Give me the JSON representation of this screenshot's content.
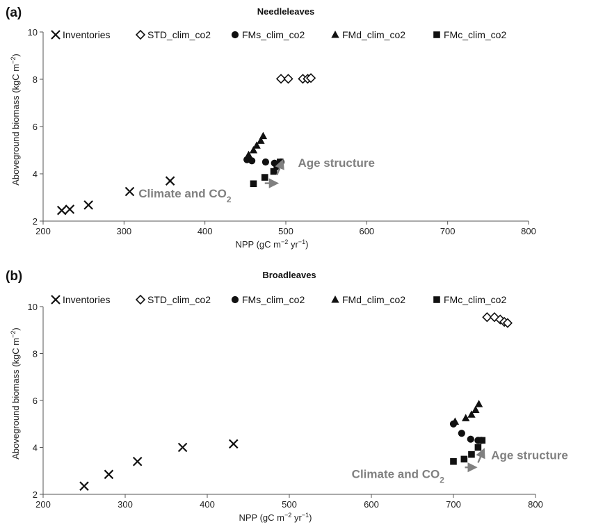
{
  "chart_data": [
    {
      "type": "scatter",
      "panel_label": "(a)",
      "title": "Needleleaves",
      "xlabel": "NPP (gC m−2 yr−1)",
      "ylabel": "Aboveground biomass (kgC m−2)",
      "xlim": [
        200,
        800
      ],
      "ylim": [
        2,
        10
      ],
      "xticks": [
        200,
        300,
        400,
        500,
        600,
        700,
        800
      ],
      "yticks": [
        2,
        4,
        6,
        8,
        10
      ],
      "legend": "top",
      "series": [
        {
          "name": "Inventories",
          "marker": "x",
          "x": [
            223,
            233,
            256,
            307,
            357
          ],
          "y": [
            2.45,
            2.5,
            2.68,
            3.25,
            3.7
          ]
        },
        {
          "name": "STD_clim_co2",
          "marker": "diamond-open",
          "x": [
            494,
            503,
            521,
            527,
            531
          ],
          "y": [
            8.02,
            8.02,
            8.02,
            8.02,
            8.05
          ]
        },
        {
          "name": "FMs_clim_co2",
          "marker": "circle",
          "x": [
            452,
            458,
            475,
            486,
            494
          ],
          "y": [
            4.6,
            4.55,
            4.5,
            4.45,
            4.5
          ]
        },
        {
          "name": "FMd_clim_co2",
          "marker": "triangle",
          "x": [
            454,
            460,
            464,
            469,
            472
          ],
          "y": [
            4.8,
            5.0,
            5.2,
            5.4,
            5.6
          ]
        },
        {
          "name": "FMc_clim_co2",
          "marker": "square",
          "x": [
            460,
            474,
            485,
            489,
            493
          ],
          "y": [
            3.58,
            3.85,
            4.1,
            4.3,
            4.5
          ]
        }
      ],
      "annotations": [
        {
          "text": "Age structure",
          "x": 515,
          "y": 4.3
        },
        {
          "text": "Climate and CO2",
          "x": 318,
          "y": 3.0
        }
      ]
    },
    {
      "type": "scatter",
      "panel_label": "(b)",
      "title": "Broadleaves",
      "xlabel": "NPP (gC m−2 yr−1)",
      "ylabel": "Aboveground biomass (kgC m−2)",
      "xlim": [
        200,
        800
      ],
      "ylim": [
        2,
        10
      ],
      "xticks": [
        200,
        300,
        400,
        500,
        600,
        700,
        800
      ],
      "yticks": [
        2,
        4,
        6,
        8,
        10
      ],
      "legend": "top",
      "series": [
        {
          "name": "Inventories",
          "marker": "x",
          "x": [
            250,
            280,
            315,
            370,
            432
          ],
          "y": [
            2.35,
            2.85,
            3.4,
            4.0,
            4.15
          ]
        },
        {
          "name": "STD_clim_co2",
          "marker": "diamond-open",
          "x": [
            741,
            750,
            757,
            762,
            766
          ],
          "y": [
            9.55,
            9.55,
            9.45,
            9.35,
            9.3
          ]
        },
        {
          "name": "FMs_clim_co2",
          "marker": "circle",
          "x": [
            700,
            710,
            721,
            730,
            734
          ],
          "y": [
            5.0,
            4.6,
            4.35,
            4.3,
            4.3
          ]
        },
        {
          "name": "FMd_clim_co2",
          "marker": "triangle",
          "x": [
            702,
            715,
            722,
            727,
            731
          ],
          "y": [
            5.1,
            5.25,
            5.4,
            5.6,
            5.85
          ]
        },
        {
          "name": "FMc_clim_co2",
          "marker": "square",
          "x": [
            700,
            713,
            722,
            730,
            735
          ],
          "y": [
            3.4,
            3.5,
            3.7,
            4.0,
            4.3
          ]
        }
      ],
      "annotations": [
        {
          "text": "Age structure",
          "x": 746,
          "y": 3.5
        },
        {
          "text": "Climate and CO2",
          "x": 576,
          "y": 2.7
        }
      ]
    }
  ]
}
